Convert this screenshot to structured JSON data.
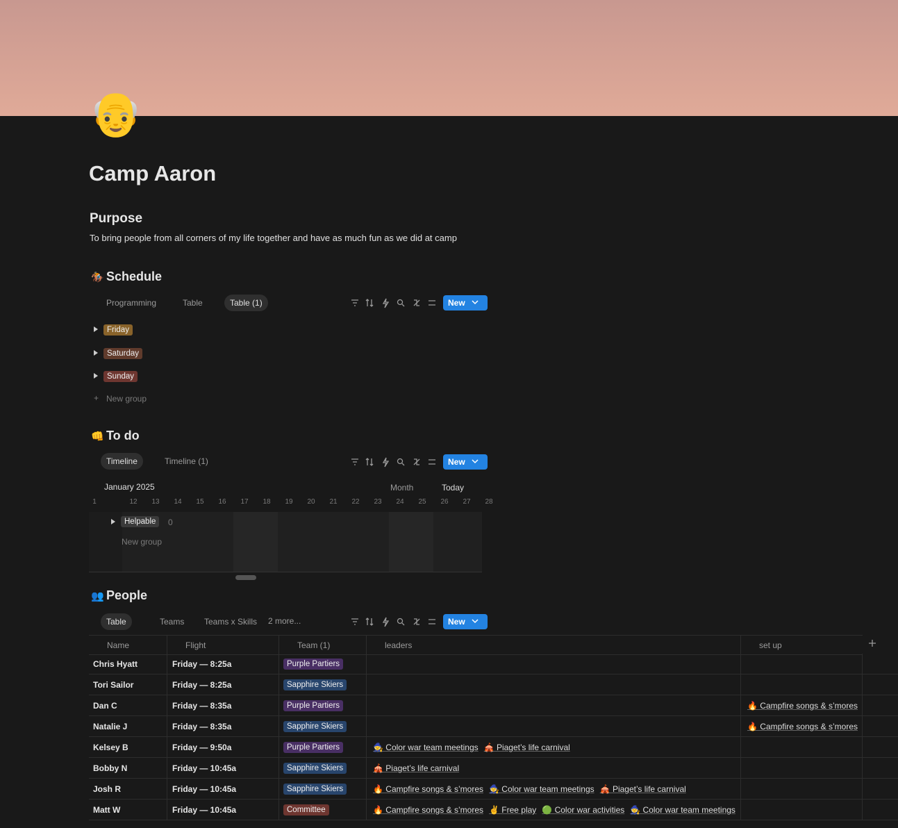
{
  "page": {
    "icon": "👴",
    "title": "Camp Aaron"
  },
  "purpose": {
    "heading": "Purpose",
    "text": "To bring people from all corners of my life together and have as much fun as we did at camp"
  },
  "schedule": {
    "icon": "🏇",
    "heading": "Schedule",
    "views": [
      "Programming",
      "Table",
      "Table (1)"
    ],
    "new_button": "New",
    "groups": [
      {
        "label": "Friday",
        "color": "#89632a"
      },
      {
        "label": "Saturday",
        "color": "#603b2c"
      },
      {
        "label": "Sunday",
        "color": "#6e3630"
      }
    ],
    "new_group": "New group"
  },
  "todo": {
    "icon": "👊",
    "heading": "To do",
    "views": [
      "Timeline",
      "Timeline (1)"
    ],
    "new_button": "New",
    "month": "January 2025",
    "scale": "Month",
    "today": "Today",
    "days": [
      "1",
      "12",
      "13",
      "14",
      "15",
      "16",
      "17",
      "18",
      "19",
      "20",
      "21",
      "22",
      "23",
      "24",
      "25",
      "26",
      "27",
      "28"
    ],
    "group": {
      "label": "Helpable",
      "count": "0"
    },
    "new_group": "New group"
  },
  "people": {
    "icon": "👥",
    "heading": "People",
    "views": [
      "Table",
      "Teams",
      "Teams x Skills"
    ],
    "more": "2 more...",
    "new_button": "New",
    "columns": [
      "Name",
      "Flight",
      "Team (1)",
      "leaders",
      "set up"
    ],
    "rows": [
      {
        "name": "Chris Hyatt",
        "flight": "Friday — 8:25a",
        "team": "Purple Partiers",
        "leaders": [],
        "setup": []
      },
      {
        "name": "Tori Sailor",
        "flight": "Friday — 8:25a",
        "team": "Sapphire Skiers",
        "leaders": [],
        "setup": []
      },
      {
        "name": "Dan C",
        "flight": "Friday — 8:35a",
        "team": "Purple Partiers",
        "leaders": [],
        "setup": [
          "🔥 Campfire songs & s’mores"
        ]
      },
      {
        "name": "Natalie J",
        "flight": "Friday — 8:35a",
        "team": "Sapphire Skiers",
        "leaders": [],
        "setup": [
          "🔥 Campfire songs & s’mores"
        ]
      },
      {
        "name": "Kelsey B",
        "flight": "Friday — 9:50a",
        "team": "Purple Partiers",
        "leaders": [
          "🧙 Color war team meetings",
          "🎪 Piaget’s life carnival"
        ],
        "setup": []
      },
      {
        "name": "Bobby N",
        "flight": "Friday — 10:45a",
        "team": "Sapphire Skiers",
        "leaders": [
          "🎪 Piaget’s life carnival"
        ],
        "setup": []
      },
      {
        "name": "Josh R",
        "flight": "Friday — 10:45a",
        "team": "Sapphire Skiers",
        "leaders": [
          "🔥 Campfire songs & s’mores",
          "🧙 Color war team meetings",
          "🎪 Piaget’s life carnival"
        ],
        "setup": []
      },
      {
        "name": "Matt W",
        "flight": "Friday — 10:45a",
        "team": "Committee",
        "leaders": [
          "🔥 Campfire songs & s’mores",
          "✌️ Free play",
          "🟢 Color war activities",
          "🧙 Color war team meetings"
        ],
        "setup": []
      }
    ]
  }
}
